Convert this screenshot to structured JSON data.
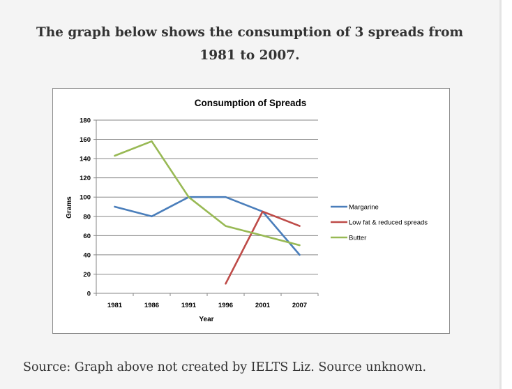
{
  "heading": "The graph below shows the consumption of 3 spreads from 1981 to 2007.",
  "source_note": "Source: Graph above not created by IELTS Liz. Source unknown.",
  "chart_data": {
    "type": "line",
    "title": "Consumption of Spreads",
    "xlabel": "Year",
    "ylabel": "Grams",
    "categories": [
      "1981",
      "1986",
      "1991",
      "1996",
      "2001",
      "2007"
    ],
    "ylim": [
      0,
      180
    ],
    "yticks": [
      0,
      20,
      40,
      60,
      80,
      100,
      120,
      140,
      160,
      180
    ],
    "grid": true,
    "legend_position": "right",
    "series": [
      {
        "name": "Margarine",
        "color": "#4a7ebb",
        "values": [
          90,
          80,
          100,
          100,
          85,
          40
        ]
      },
      {
        "name": "Low fat & reduced spreads",
        "color": "#be4b48",
        "values": [
          null,
          null,
          null,
          10,
          85,
          70
        ]
      },
      {
        "name": "Butter",
        "color": "#98b954",
        "values": [
          143,
          158,
          100,
          70,
          60,
          50
        ]
      }
    ]
  }
}
